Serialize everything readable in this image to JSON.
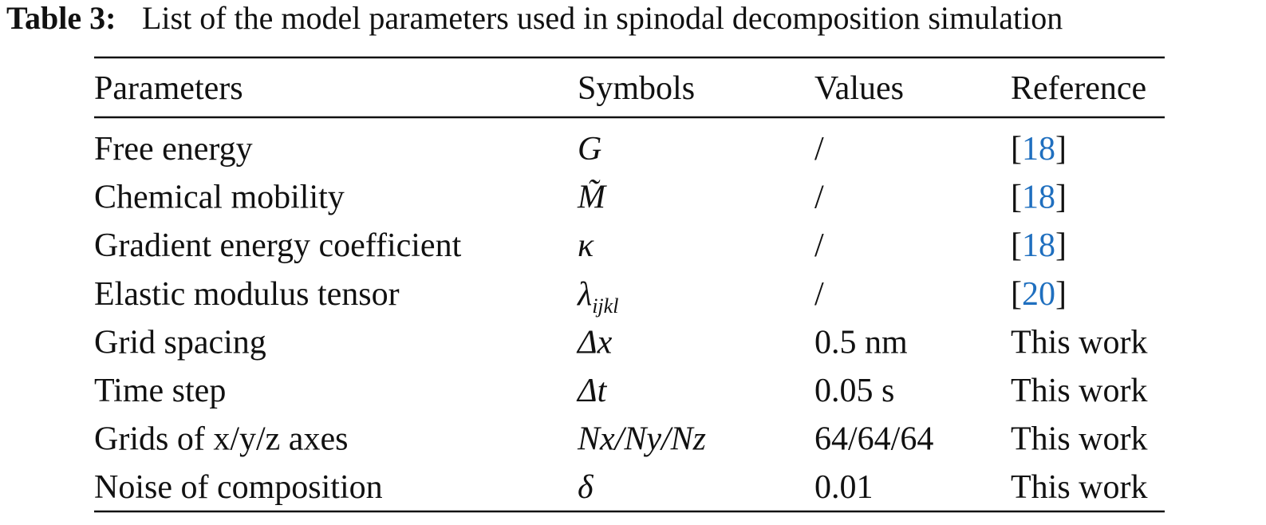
{
  "caption": {
    "label": "Table 3:",
    "text": "List of the model parameters used in spinodal decomposition simulation"
  },
  "table": {
    "header": [
      "Parameters",
      "Symbols",
      "Values",
      "Reference"
    ],
    "rows": [
      {
        "parameter": "Free energy",
        "symbol": "G",
        "value": "/",
        "reference": [
          "[",
          "18",
          "]"
        ]
      },
      {
        "parameter": "Chemical mobility",
        "symbol": "M̃",
        "value": "/",
        "reference": [
          "[",
          "18",
          "]"
        ]
      },
      {
        "parameter": "Gradient energy coefficient",
        "symbol": "κ",
        "value": "/",
        "reference": [
          "[",
          "18",
          "]"
        ]
      },
      {
        "parameter": "Elastic modulus tensor",
        "symbol": "λ",
        "symbol_sub": "ijkl",
        "value": "/",
        "reference": [
          "[",
          "20",
          "]"
        ]
      },
      {
        "parameter": "Grid spacing",
        "symbol": "Δx",
        "value": "0.5 nm",
        "reference": "This work"
      },
      {
        "parameter": "Time step",
        "symbol": "Δt",
        "value": "0.05 s",
        "reference": "This work"
      },
      {
        "parameter": "Grids of x/y/z axes",
        "symbol": "Nx/Ny/Nz",
        "value": "64/64/64",
        "reference": "This work"
      },
      {
        "parameter": "Noise of composition",
        "symbol": "δ",
        "value": "0.01",
        "reference": "This work"
      }
    ]
  }
}
